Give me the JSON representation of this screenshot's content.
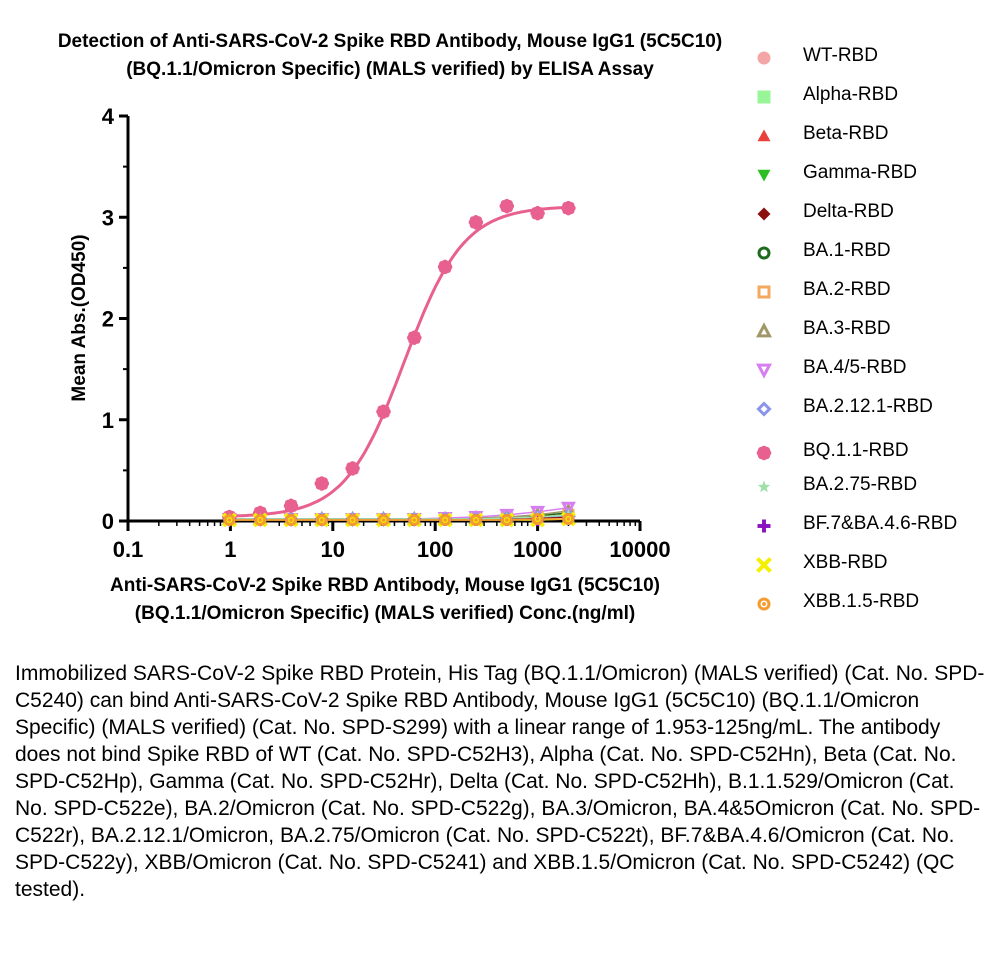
{
  "chart_data": {
    "type": "scatter",
    "title_line1": "Detection of Anti-SARS-CoV-2 Spike RBD Antibody, Mouse IgG1 (5C5C10)",
    "title_line2": "(BQ.1.1/Omicron Specific) (MALS verified) by ELISA Assay",
    "xlabel_line1": "Anti-SARS-CoV-2 Spike RBD Antibody, Mouse IgG1 (5C5C10)",
    "xlabel_line2": "(BQ.1.1/Omicron Specific) (MALS verified) Conc.(ng/ml)",
    "ylabel": "Mean Abs.(OD450)",
    "x_scale": "log",
    "xlim": [
      0.1,
      10000
    ],
    "ylim": [
      0,
      4
    ],
    "x_ticks": [
      0.1,
      1,
      10,
      100,
      1000,
      10000
    ],
    "x_tick_labels": [
      "0.1",
      "1",
      "10",
      "100",
      "1000",
      "10000"
    ],
    "y_ticks": [
      0,
      1,
      2,
      3,
      4
    ],
    "y_tick_labels": [
      "0",
      "1",
      "2",
      "3",
      "4"
    ],
    "grid": false,
    "legend_position": "right",
    "x": [
      0.977,
      1.953,
      3.906,
      7.813,
      15.625,
      31.25,
      62.5,
      125,
      250,
      500,
      1000,
      2000
    ],
    "series": [
      {
        "name": "WT-RBD",
        "marker": "circle",
        "color": "#f4a6a6",
        "fit": false,
        "values": [
          0.02,
          0.02,
          0.02,
          0.02,
          0.02,
          0.02,
          0.02,
          0.02,
          0.02,
          0.03,
          0.04,
          0.05
        ]
      },
      {
        "name": "Alpha-RBD",
        "marker": "square",
        "color": "#98f598",
        "fit": false,
        "values": [
          0.02,
          0.02,
          0.02,
          0.02,
          0.02,
          0.02,
          0.02,
          0.02,
          0.02,
          0.03,
          0.04,
          0.05
        ]
      },
      {
        "name": "Beta-RBD",
        "marker": "triangle-up",
        "color": "#e8403a",
        "fit": false,
        "values": [
          0.02,
          0.02,
          0.02,
          0.02,
          0.02,
          0.02,
          0.02,
          0.02,
          0.02,
          0.03,
          0.04,
          0.06
        ]
      },
      {
        "name": "Gamma-RBD",
        "marker": "triangle-down",
        "color": "#2bbf24",
        "fit": false,
        "values": [
          0.02,
          0.02,
          0.02,
          0.02,
          0.02,
          0.02,
          0.02,
          0.02,
          0.02,
          0.03,
          0.04,
          0.06
        ]
      },
      {
        "name": "Delta-RBD",
        "marker": "diamond",
        "color": "#8b1010",
        "fit": false,
        "values": [
          0.02,
          0.02,
          0.02,
          0.02,
          0.02,
          0.02,
          0.02,
          0.02,
          0.02,
          0.02,
          0.03,
          0.04
        ]
      },
      {
        "name": "BA.1-RBD",
        "marker": "ring",
        "color": "#1d6b1d",
        "fit": false,
        "values": [
          0.02,
          0.02,
          0.02,
          0.02,
          0.02,
          0.02,
          0.02,
          0.02,
          0.02,
          0.03,
          0.05,
          0.08
        ]
      },
      {
        "name": "BA.2-RBD",
        "marker": "square-open",
        "color": "#f5a860",
        "fit": false,
        "values": [
          0.02,
          0.02,
          0.02,
          0.02,
          0.02,
          0.02,
          0.02,
          0.02,
          0.02,
          0.03,
          0.04,
          0.06
        ]
      },
      {
        "name": "BA.3-RBD",
        "marker": "triangle-up-open",
        "color": "#a09868",
        "fit": false,
        "values": [
          0.02,
          0.02,
          0.02,
          0.02,
          0.02,
          0.02,
          0.02,
          0.02,
          0.03,
          0.04,
          0.06,
          0.1
        ]
      },
      {
        "name": "BA.4/5-RBD",
        "marker": "triangle-down-open",
        "color": "#d77ff0",
        "fit": false,
        "values": [
          0.02,
          0.02,
          0.02,
          0.02,
          0.02,
          0.02,
          0.02,
          0.03,
          0.04,
          0.06,
          0.09,
          0.13
        ]
      },
      {
        "name": "BA.2.12.1-RBD",
        "marker": "diamond-open",
        "color": "#8a94e8",
        "fit": false,
        "values": [
          0.02,
          0.02,
          0.02,
          0.02,
          0.02,
          0.02,
          0.02,
          0.02,
          0.02,
          0.03,
          0.04,
          0.05
        ]
      },
      {
        "name": "BQ.1.1-RBD",
        "marker": "flower",
        "color": "#e8608f",
        "fit": true,
        "values": [
          0.04,
          0.08,
          0.15,
          0.37,
          0.52,
          1.08,
          1.81,
          2.51,
          2.95,
          3.11,
          3.04,
          3.09
        ]
      },
      {
        "name": "BA.2.75-RBD",
        "marker": "star",
        "color": "#9ee0a8",
        "fit": false,
        "values": [
          0.02,
          0.02,
          0.02,
          0.02,
          0.02,
          0.02,
          0.02,
          0.02,
          0.02,
          0.03,
          0.04,
          0.06
        ]
      },
      {
        "name": "BF.7&BA.4.6-RBD",
        "marker": "plus",
        "color": "#8a12c0",
        "fit": false,
        "values": [
          0.01,
          0.01,
          0.01,
          0.01,
          0.01,
          0.01,
          0.01,
          0.01,
          0.01,
          0.01,
          0.01,
          0.02
        ]
      },
      {
        "name": "XBB-RBD",
        "marker": "cross",
        "color": "#f5f000",
        "fit": false,
        "values": [
          0.01,
          0.01,
          0.01,
          0.01,
          0.01,
          0.01,
          0.01,
          0.01,
          0.01,
          0.01,
          0.01,
          0.02
        ]
      },
      {
        "name": "XBB.1.5-RBD",
        "marker": "dot-ring",
        "color": "#f39a30",
        "fit": false,
        "values": [
          0.01,
          0.01,
          0.01,
          0.01,
          0.01,
          0.01,
          0.01,
          0.01,
          0.01,
          0.01,
          0.02,
          0.02
        ]
      }
    ]
  },
  "caption": "Immobilized SARS-CoV-2 Spike RBD Protein, His Tag (BQ.1.1/Omicron) (MALS verified) (Cat. No. SPD-C5240) can bind Anti-SARS-CoV-2 Spike RBD Antibody, Mouse IgG1 (5C5C10) (BQ.1.1/Omicron Specific) (MALS verified) (Cat. No. SPD-S299) with a linear range of 1.953-125ng/mL. The antibody does not bind Spike RBD of WT (Cat. No. SPD-C52H3), Alpha (Cat. No. SPD-C52Hn), Beta (Cat. No. SPD-C52Hp), Gamma (Cat. No. SPD-C52Hr), Delta (Cat. No. SPD-C52Hh), B.1.1.529/Omicron (Cat. No.  SPD-C522e), BA.2/Omicron (Cat. No. SPD-C522g), BA.3/Omicron, BA.4&5Omicron (Cat. No. SPD-C522r), BA.2.12.1/Omicron, BA.2.75/Omicron (Cat. No. SPD-C522t), BF.7&BA.4.6/Omicron (Cat. No. SPD-C522y), XBB/Omicron (Cat. No. SPD-C5241) and XBB.1.5/Omicron (Cat. No. SPD-C5242) (QC tested)."
}
